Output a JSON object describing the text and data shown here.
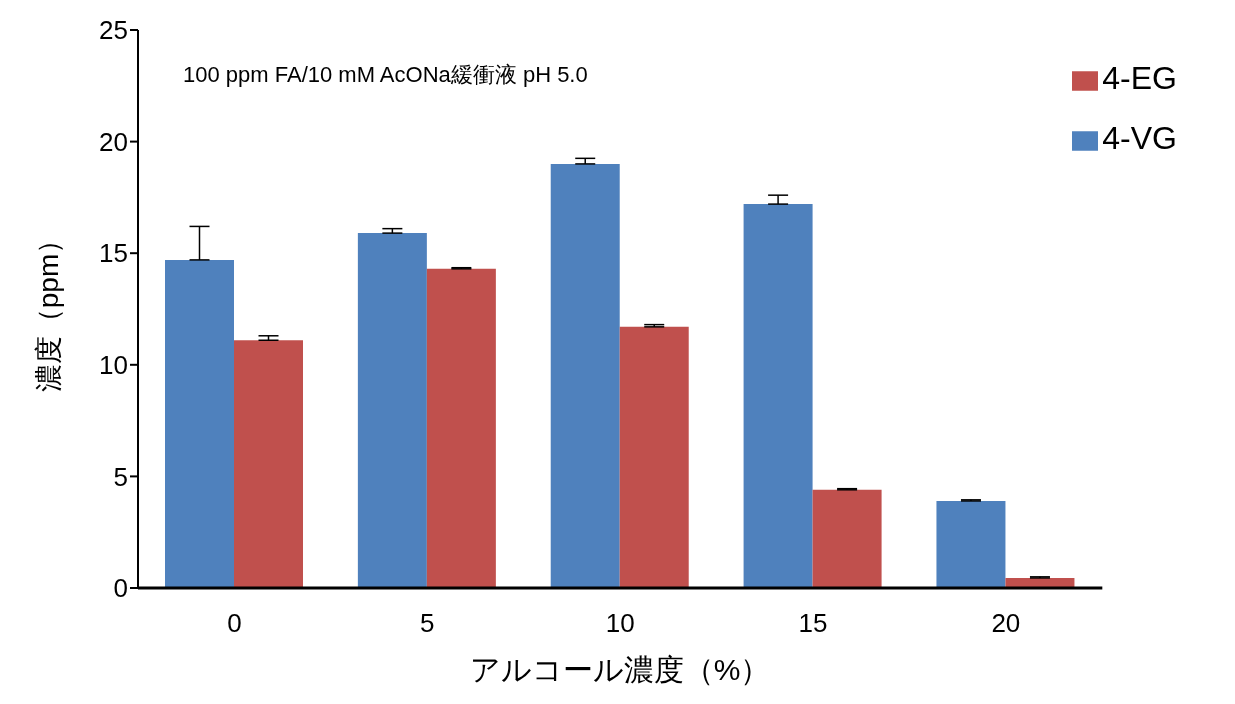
{
  "chart_data": {
    "type": "bar",
    "xlabel": "アルコール濃度（%）",
    "ylabel": "濃度（ppm）",
    "annotations": [
      "100 ppm FA/10 mM AcONa緩衝液 pH 5.0"
    ],
    "categories": [
      "0",
      "5",
      "10",
      "15",
      "20"
    ],
    "series": [
      {
        "name": "4-VG",
        "color": "#4f81bd",
        "values": [
          14.7,
          15.9,
          19.0,
          17.2,
          3.9
        ],
        "errors": [
          [
            14.7,
            16.2
          ],
          [
            15.9,
            16.1
          ],
          [
            19.0,
            19.25
          ],
          [
            17.2,
            17.6
          ],
          [
            3.9,
            3.95
          ]
        ]
      },
      {
        "name": "4-EG",
        "color": "#c0504d",
        "values": [
          11.1,
          14.3,
          11.7,
          4.4,
          0.45
        ],
        "errors": [
          [
            11.1,
            11.3
          ],
          [
            14.3,
            14.35
          ],
          [
            11.7,
            11.8
          ],
          [
            4.4,
            4.45
          ],
          [
            0.45,
            0.5
          ]
        ]
      }
    ],
    "ylim": [
      0,
      25
    ],
    "yticks": [
      0,
      5,
      10,
      15,
      20,
      25
    ],
    "grid": false,
    "legend": "top right"
  }
}
